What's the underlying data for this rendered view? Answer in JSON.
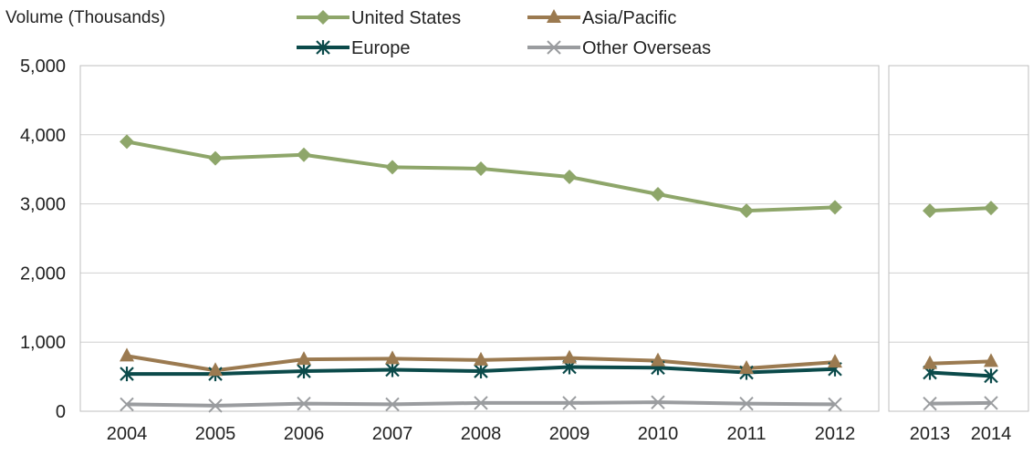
{
  "chart_data": {
    "type": "line",
    "ylabel": "Volume (Thousands)",
    "ylim": [
      0,
      5000
    ],
    "yticks": [
      0,
      1000,
      2000,
      3000,
      4000,
      5000
    ],
    "ytick_labels": [
      "0",
      "1,000",
      "2,000",
      "3,000",
      "4,000",
      "5,000"
    ],
    "grid": true,
    "legend_position": "top",
    "panels": [
      {
        "categories": [
          "2004",
          "2005",
          "2006",
          "2007",
          "2008",
          "2009",
          "2010",
          "2011",
          "2012"
        ]
      },
      {
        "categories": [
          "2013",
          "2014"
        ]
      }
    ],
    "series": [
      {
        "name": "United States",
        "color": "#8ea66a",
        "marker": "diamond",
        "values": [
          3900,
          3660,
          3710,
          3530,
          3510,
          3390,
          3140,
          2900,
          2950,
          2900,
          2940
        ]
      },
      {
        "name": "Asia/Pacific",
        "color": "#9b7a50",
        "marker": "triangle",
        "values": [
          800,
          590,
          750,
          760,
          740,
          770,
          730,
          620,
          710,
          690,
          720
        ]
      },
      {
        "name": "Europe",
        "color": "#0b4a4a",
        "marker": "asterisk",
        "values": [
          540,
          540,
          580,
          600,
          580,
          640,
          630,
          560,
          610,
          560,
          510
        ]
      },
      {
        "name": "Other Overseas",
        "color": "#9a9c9f",
        "marker": "x",
        "values": [
          100,
          80,
          110,
          100,
          120,
          120,
          130,
          110,
          100,
          110,
          120
        ]
      }
    ]
  }
}
